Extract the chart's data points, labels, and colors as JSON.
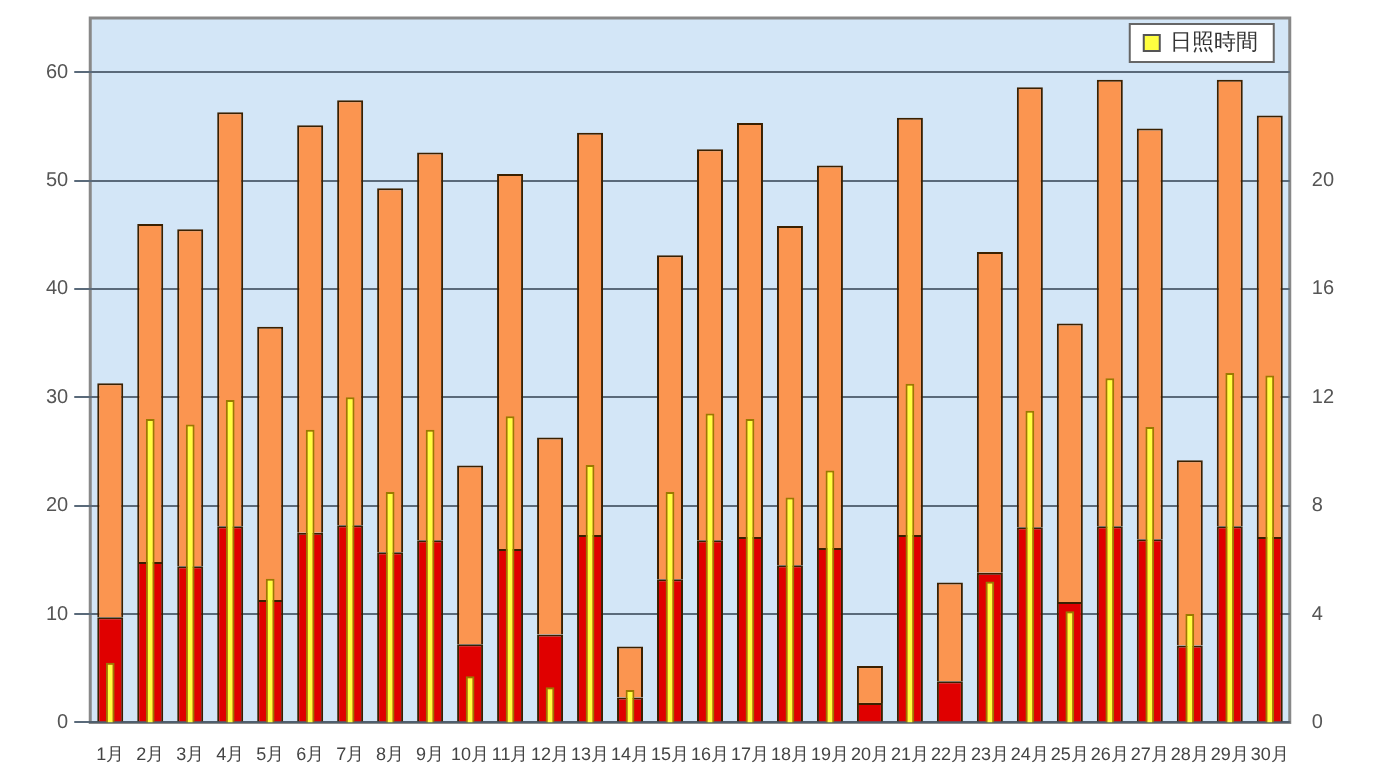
{
  "chart_data": {
    "type": "bar",
    "stacked": true,
    "categories": [
      "1月",
      "2月",
      "3月",
      "4月",
      "5月",
      "6月",
      "7月",
      "8月",
      "9月",
      "10月",
      "11月",
      "12月",
      "13月",
      "14月",
      "15月",
      "16月",
      "17月",
      "18月",
      "19月",
      "20月",
      "21月",
      "22月",
      "23月",
      "24月",
      "25月",
      "26月",
      "27月",
      "28月",
      "29月",
      "30月"
    ],
    "series": [
      {
        "color": "#e00000",
        "values": [
          9.7,
          14.8,
          14.4,
          18.1,
          11.3,
          17.5,
          18.2,
          15.7,
          16.8,
          7.2,
          16.0,
          8.1,
          17.3,
          2.3,
          13.2,
          16.8,
          17.1,
          14.5,
          16.1,
          1.8,
          17.3,
          3.8,
          13.8,
          18.0,
          11.1,
          18.1,
          16.9,
          7.1,
          18.1,
          17.1
        ]
      },
      {
        "color": "#fb9550",
        "values": [
          21.6,
          31.2,
          31.1,
          38.2,
          25.2,
          37.6,
          39.2,
          33.6,
          35.8,
          16.5,
          34.6,
          18.2,
          37.1,
          4.7,
          29.9,
          36.1,
          38.2,
          31.3,
          35.3,
          3.4,
          38.5,
          9.1,
          29.6,
          40.6,
          25.7,
          41.2,
          37.9,
          17.1,
          41.2,
          38.9
        ]
      },
      {
        "name": "日照時間",
        "color": "#ffff40",
        "axis": "y2",
        "values": [
          2.2,
          11.2,
          11.0,
          11.9,
          5.3,
          10.8,
          12.0,
          8.5,
          10.8,
          1.7,
          11.3,
          1.3,
          9.5,
          1.2,
          8.5,
          11.4,
          11.2,
          8.3,
          9.3,
          0,
          12.5,
          0,
          5.2,
          11.5,
          4.1,
          12.7,
          10.9,
          4.0,
          12.9,
          12.8
        ]
      }
    ],
    "ylim": [
      0,
      65
    ],
    "yticks": [
      0,
      10,
      20,
      30,
      40,
      50,
      60
    ],
    "y2lim": [
      0,
      26
    ],
    "y2ticks": [
      0,
      4,
      8,
      12,
      16,
      20
    ],
    "grid": "y",
    "legend": "top right"
  }
}
